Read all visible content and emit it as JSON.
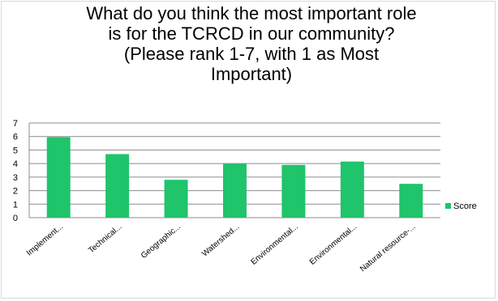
{
  "chart_data": {
    "type": "bar",
    "title_lines": [
      "What do you think the most important role",
      "is for the TCRCD in our community?",
      "(Please rank 1-7, with 1 as Most",
      "Important)"
    ],
    "categories": [
      "Implement...",
      "Technical...",
      "Geographic...",
      "Watershed...",
      "Environmental...",
      "Environmental...",
      "Natural resource-..."
    ],
    "series": [
      {
        "name": "Score",
        "values": [
          5.95,
          4.7,
          2.8,
          4.0,
          3.9,
          4.15,
          2.5
        ]
      }
    ],
    "ylim": [
      0,
      7
    ],
    "yticks": [
      0,
      1,
      2,
      3,
      4,
      5,
      6,
      7
    ],
    "grid": true,
    "legend_position": "right",
    "colors": {
      "bar": "#1fc46b",
      "grid": "#8c8c8c",
      "axis": "#8c8c8c"
    }
  }
}
